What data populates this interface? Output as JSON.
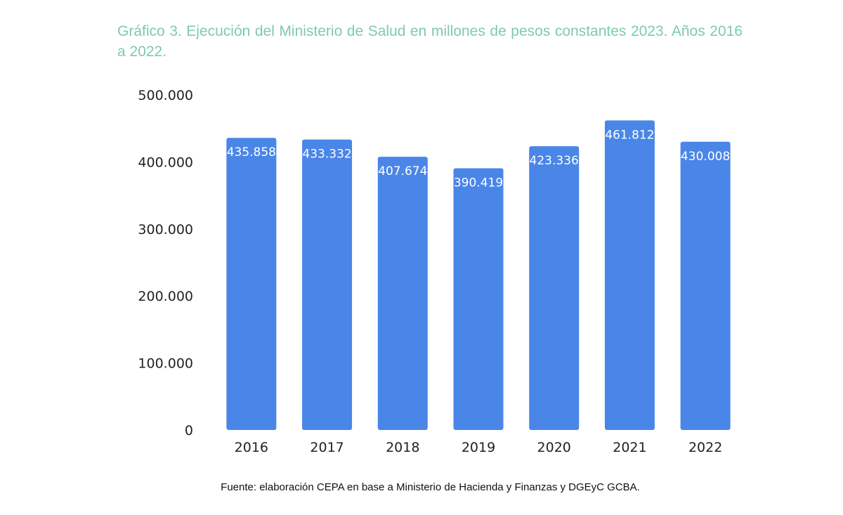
{
  "chart_data": {
    "type": "bar",
    "title": "Gráfico 3. Ejecución del Ministerio de Salud en millones de pesos constantes 2023. Años 2016 a 2022.",
    "xlabel": "",
    "ylabel": "",
    "categories": [
      "2016",
      "2017",
      "2018",
      "2019",
      "2020",
      "2021",
      "2022"
    ],
    "values": [
      435858,
      433332,
      407674,
      390419,
      423336,
      461812,
      430008
    ],
    "value_labels": [
      "435.858",
      "433.332",
      "407.674",
      "390.419",
      "423.336",
      "461.812",
      "430.008"
    ],
    "ylim": [
      0,
      500000
    ],
    "yticks": [
      0,
      100000,
      200000,
      300000,
      400000,
      500000
    ],
    "ytick_labels": [
      "0",
      "100.000",
      "200.000",
      "300.000",
      "400.000",
      "500.000"
    ],
    "grid": false,
    "legend": "none",
    "bar_color": "#4a86e8",
    "title_color": "#7fcba8"
  },
  "source": "Fuente: elaboración CEPA en base a Ministerio de Hacienda y Finanzas y DGEyC GCBA."
}
